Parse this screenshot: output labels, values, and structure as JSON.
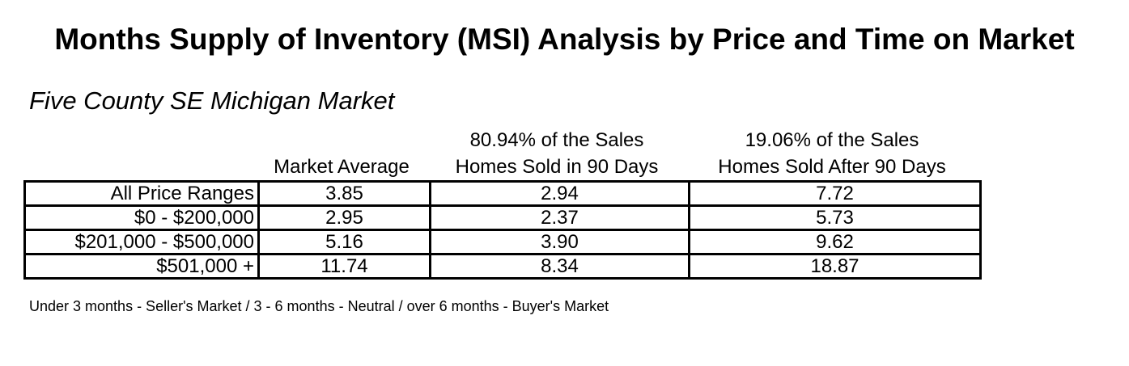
{
  "title": "Months Supply of Inventory (MSI) Analysis by Price and Time on Market",
  "subtitle": "Five County SE Michigan Market",
  "columns": {
    "market_average": {
      "line1": "",
      "line2": "Market Average"
    },
    "sold_in_90": {
      "line1": "80.94% of the Sales",
      "line2": "Homes Sold in 90 Days"
    },
    "sold_after_90": {
      "line1": "19.06% of the Sales",
      "line2": "Homes Sold After 90 Days"
    }
  },
  "rows": [
    {
      "label": "All Price Ranges",
      "market_average": "3.85",
      "sold_in_90": "2.94",
      "sold_after_90": "7.72"
    },
    {
      "label": "$0 - $200,000",
      "market_average": "2.95",
      "sold_in_90": "2.37",
      "sold_after_90": "5.73"
    },
    {
      "label": "$201,000 - $500,000",
      "market_average": "5.16",
      "sold_in_90": "3.90",
      "sold_after_90": "9.62"
    },
    {
      "label": "$501,000 +",
      "market_average": "11.74",
      "sold_in_90": "8.34",
      "sold_after_90": "18.87"
    }
  ],
  "footnote": "Under 3 months - Seller's Market / 3 - 6 months - Neutral / over 6 months - Buyer's Market",
  "chart_data": {
    "type": "table",
    "title": "Months Supply of Inventory (MSI) Analysis by Price and Time on Market",
    "subtitle": "Five County SE Michigan Market",
    "categories": [
      "All Price Ranges",
      "$0 - $200,000",
      "$201,000 - $500,000",
      "$501,000 +"
    ],
    "series": [
      {
        "name": "Market Average",
        "values": [
          3.85,
          2.95,
          5.16,
          11.74
        ]
      },
      {
        "name": "Homes Sold in 90 Days",
        "values": [
          2.94,
          2.37,
          3.9,
          8.34
        ]
      },
      {
        "name": "Homes Sold After 90 Days",
        "values": [
          7.72,
          5.73,
          9.62,
          18.87
        ]
      }
    ]
  }
}
